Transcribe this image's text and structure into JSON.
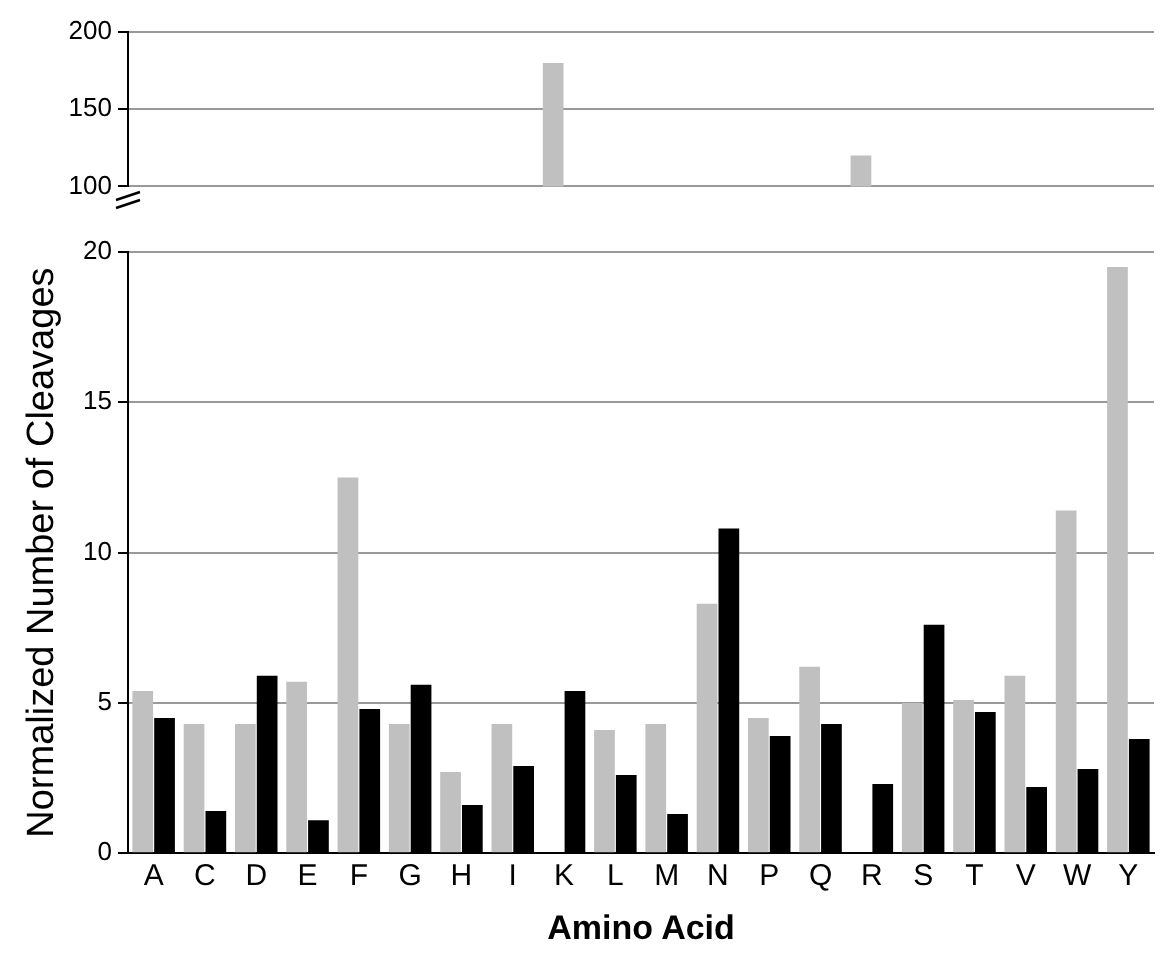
{
  "chart_data": [
    {
      "type": "bar",
      "categories": [
        null,
        null,
        null,
        null,
        null,
        null,
        null,
        null,
        null,
        null,
        null,
        null,
        null,
        null,
        null,
        null,
        null,
        null,
        null,
        null
      ],
      "series": [
        {
          "color": "#c0c0c0",
          "values": [
            null,
            null,
            null,
            null,
            null,
            null,
            null,
            null,
            180,
            null,
            null,
            null,
            null,
            null,
            120,
            null,
            null,
            null,
            null,
            null
          ]
        },
        {
          "color": "#000000",
          "values": [
            null,
            null,
            null,
            null,
            null,
            null,
            null,
            null,
            null,
            null,
            null,
            null,
            null,
            null,
            null,
            null,
            null,
            null,
            null,
            null
          ]
        }
      ],
      "ylim": [
        100,
        200
      ],
      "yticks": [
        100,
        150,
        200
      ],
      "grid": "y",
      "legend": false,
      "tick_labels": "y"
    },
    {
      "type": "bar",
      "xlabel": "Amino Acid",
      "ylabel": "Normalized Number of Cleavages",
      "categories": [
        "A",
        "C",
        "D",
        "E",
        "F",
        "G",
        "H",
        "I",
        "K",
        "L",
        "M",
        "N",
        "P",
        "Q",
        "R",
        "S",
        "T",
        "V",
        "W",
        "Y"
      ],
      "series": [
        {
          "color": "#c0c0c0",
          "values": [
            5.4,
            4.3,
            4.3,
            5.7,
            12.5,
            4.3,
            2.7,
            4.3,
            null,
            4.1,
            4.3,
            8.3,
            4.5,
            6.2,
            null,
            5.0,
            5.1,
            5.9,
            11.4,
            19.5
          ]
        },
        {
          "color": "#000000",
          "values": [
            4.5,
            1.4,
            5.9,
            1.1,
            4.8,
            5.6,
            1.6,
            2.9,
            5.4,
            2.6,
            1.3,
            10.8,
            3.9,
            4.3,
            2.3,
            7.6,
            4.7,
            2.2,
            2.8,
            3.8
          ]
        }
      ],
      "ylim": [
        0,
        20
      ],
      "yticks": [
        0,
        5,
        10,
        15,
        20
      ],
      "grid": "y",
      "legend": false
    }
  ]
}
